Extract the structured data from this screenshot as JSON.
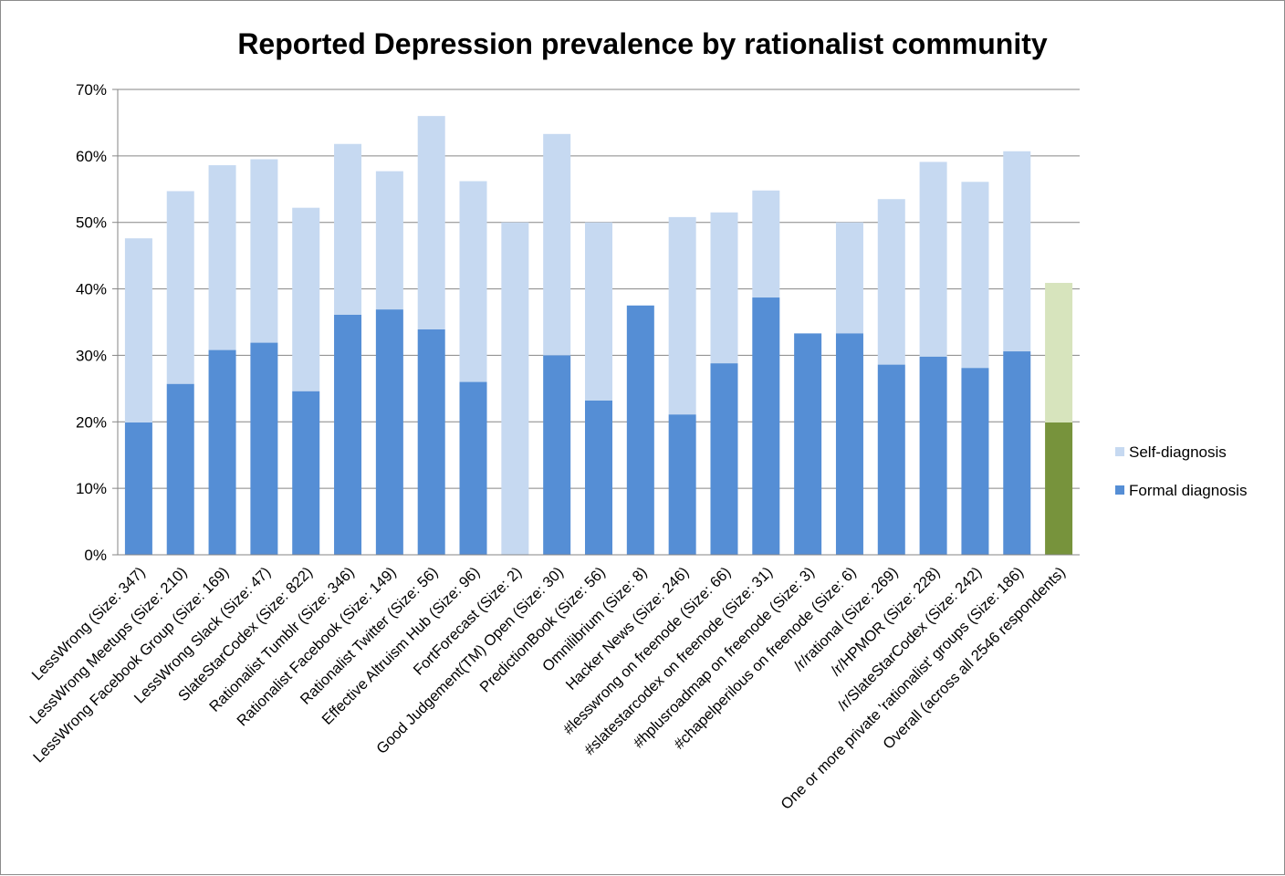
{
  "chart_data": {
    "type": "bar",
    "stacked": true,
    "title": "Reported Depression prevalence by rationalist community",
    "xlabel": "",
    "ylabel": "",
    "ylim": [
      0,
      0.7
    ],
    "yticks": [
      "0%",
      "10%",
      "20%",
      "30%",
      "40%",
      "50%",
      "60%",
      "70%"
    ],
    "grid": true,
    "legend_position": "right",
    "categories": [
      "LessWrong (Size: 347)",
      "LessWrong Meetups (Size: 210)",
      "LessWrong Facebook Group (Size: 169)",
      "LessWrong Slack (Size: 47)",
      "SlateStarCodex (Size: 822)",
      "Rationalist Tumblr (Size: 346)",
      "Rationalist Facebook (Size: 149)",
      "Rationalist Twitter (Size: 56)",
      "Effective Altruism Hub (Size: 96)",
      "FortForecast (Size: 2)",
      "Good Judgement(TM) Open  (Size: 30)",
      "PredictionBook (Size: 56)",
      "Omnilibrium (Size: 8)",
      "Hacker News (Size: 246)",
      "#lesswrong on freenode  (Size: 66)",
      "#slatestarcodex on freenode  (Size: 31)",
      "#hplusroadmap on freenode  (Size: 3)",
      "#chapelperilous on freenode (Size: 6)",
      "/r/rational (Size: 269)",
      "/r/HPMOR (Size: 228)",
      "/r/SlateStarCodex (Size: 242)",
      "One or more private 'rationalist' groups  (Size: 186)",
      "Overall (across all 2546 respondents)"
    ],
    "series": [
      {
        "name": "Formal diagnosis",
        "color": "#558ed5",
        "values": [
          0.199,
          0.257,
          0.308,
          0.319,
          0.246,
          0.361,
          0.369,
          0.339,
          0.26,
          0.0,
          0.3,
          0.232,
          0.375,
          0.211,
          0.288,
          0.387,
          0.333,
          0.333,
          0.286,
          0.298,
          0.281,
          0.306,
          0.199
        ]
      },
      {
        "name": "Self-diagnosis",
        "color": "#c6d9f1",
        "values": [
          0.277,
          0.29,
          0.278,
          0.276,
          0.276,
          0.257,
          0.208,
          0.321,
          0.302,
          0.5,
          0.333,
          0.268,
          0.0,
          0.297,
          0.227,
          0.161,
          0.0,
          0.167,
          0.249,
          0.293,
          0.28,
          0.301,
          0.21
        ]
      }
    ],
    "highlight": {
      "category_index": 22,
      "formal_color": "#77933c",
      "self_color": "#d7e4bd"
    },
    "legend": [
      "Self-diagnosis",
      "Formal diagnosis"
    ]
  }
}
